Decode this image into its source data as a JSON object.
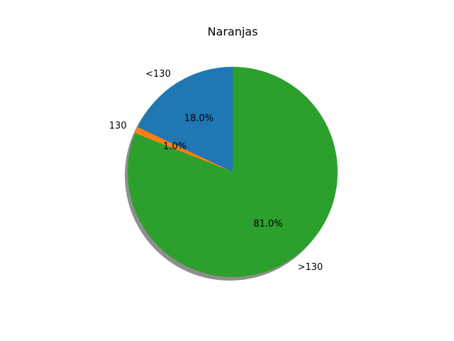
{
  "chart_data": {
    "type": "pie",
    "title": "Naranjas",
    "categories": [
      "<130",
      "130",
      ">130"
    ],
    "values": [
      18.0,
      1.0,
      81.0
    ],
    "autopct": [
      "18.0%",
      "1.0%",
      "81.0%"
    ],
    "colors": [
      "#1f77b4",
      "#ff7f0e",
      "#2ca02c"
    ],
    "shadow": true,
    "start_angle_deg": 90,
    "direction": "counterclockwise"
  }
}
